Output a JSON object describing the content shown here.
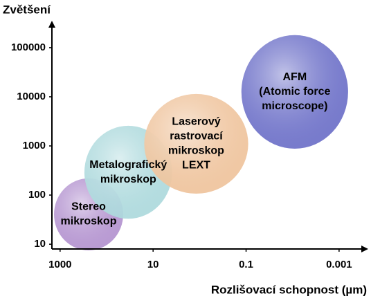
{
  "chart_data": {
    "type": "ellipse",
    "y_label": "Zvětšení",
    "x_label": "Rozlišovací schopnost (µm)",
    "xscale": "log",
    "yscale": "log",
    "xlim": [
      1500,
      0.0003
    ],
    "ylim": [
      8,
      300000
    ],
    "xticks": [
      1000,
      10,
      0.1,
      0.001
    ],
    "yticks": [
      10,
      100,
      1000,
      10000,
      100000
    ],
    "series": [
      {
        "label": [
          "Stereo",
          "mikroskop"
        ],
        "color": "#b393cf",
        "x": [
          1350,
          44
        ],
        "y": [
          7.5,
          219
        ]
      },
      {
        "label": [
          "Metalografický",
          "mikroskop"
        ],
        "color": "#acd9dc",
        "x": [
          300,
          3.9
        ],
        "y": [
          33,
          2570
        ]
      },
      {
        "label": [
          "Laserový",
          "rastrovací",
          "mikroskop",
          "LEXT"
        ],
        "color": "#efc39c",
        "x": [
          15.5,
          0.09
        ],
        "y": [
          107,
          11400
        ]
      },
      {
        "label": [
          "AFM",
          "(Atomic force",
          "microscope)"
        ],
        "color": "#6c70c8",
        "x": [
          0.126,
          0.00064
        ],
        "y": [
          880,
          180000
        ]
      }
    ]
  }
}
